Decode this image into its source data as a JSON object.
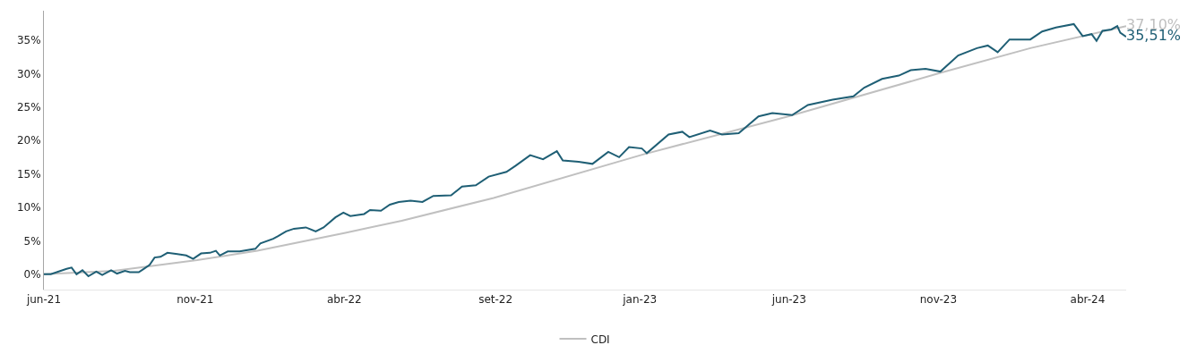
{
  "chart_data": {
    "type": "line",
    "xticks": [
      {
        "value": "2021-06-01",
        "label": "jun-21"
      },
      {
        "value": "2021-11-01",
        "label": "nov-21"
      },
      {
        "value": "2022-04-01",
        "label": "abr-22"
      },
      {
        "value": "2022-09-01",
        "label": "set-22"
      },
      {
        "value": "2023-01-25",
        "label": "jan-23"
      },
      {
        "value": "2023-06-25",
        "label": "jun-23"
      },
      {
        "value": "2023-11-23",
        "label": "nov-23"
      },
      {
        "value": "2024-04-22",
        "label": "abr-24"
      }
    ],
    "ylim": [
      -2.3,
      39.4
    ],
    "yticks": [
      {
        "value": 0,
        "label": "0%"
      },
      {
        "value": 5,
        "label": "5%"
      },
      {
        "value": 10,
        "label": "10%"
      },
      {
        "value": 15,
        "label": "15%"
      },
      {
        "value": 20,
        "label": "20%"
      },
      {
        "value": 25,
        "label": "25%"
      },
      {
        "value": 30,
        "label": "30%"
      },
      {
        "value": 35,
        "label": "35%"
      }
    ],
    "xlim": [
      "2021-06-01",
      "2024-05-31"
    ],
    "legend": "bottom",
    "marker": "none",
    "line_style": "solid",
    "series": [
      {
        "name": "CDI",
        "color": "#c0c0c0",
        "x": [
          "2021-06-01",
          "2021-08-11",
          "2021-11-03",
          "2022-01-03",
          "2022-04-02",
          "2022-05-29",
          "2022-08-30",
          "2023-01-28",
          "2023-06-24",
          "2023-11-25",
          "2024-02-24",
          "2024-05-31"
        ],
        "values": [
          0,
          0.5,
          2.1,
          3.5,
          6.2,
          8.0,
          11.4,
          17.9,
          23.6,
          30.1,
          33.8,
          37.1
        ],
        "value_labels": [
          null,
          null,
          null,
          null,
          null,
          null,
          null,
          null,
          null,
          null,
          null,
          "37,10%"
        ]
      },
      {
        "color": "#1f5f75",
        "x": [
          "2021-06-01",
          "2021-06-08",
          "2021-06-24",
          "2021-06-29",
          "2021-07-04",
          "2021-07-10",
          "2021-07-16",
          "2021-07-24",
          "2021-07-30",
          "2021-08-08",
          "2021-08-14",
          "2021-08-22",
          "2021-08-27",
          "2021-09-05",
          "2021-09-10",
          "2021-09-16",
          "2021-09-21",
          "2021-09-27",
          "2021-10-04",
          "2021-10-14",
          "2021-10-23",
          "2021-10-30",
          "2021-11-07",
          "2021-11-16",
          "2021-11-22",
          "2021-11-26",
          "2021-12-04",
          "2021-12-16",
          "2022-01-01",
          "2022-01-06",
          "2022-01-19",
          "2022-01-24",
          "2022-02-01",
          "2022-02-09",
          "2022-02-21",
          "2022-03-03",
          "2022-03-11",
          "2022-03-23",
          "2022-03-31",
          "2022-04-07",
          "2022-04-21",
          "2022-04-27",
          "2022-05-08",
          "2022-05-17",
          "2022-05-26",
          "2022-06-07",
          "2022-06-19",
          "2022-06-30",
          "2022-07-18",
          "2022-07-29",
          "2022-08-12",
          "2022-08-25",
          "2022-09-12",
          "2022-09-21",
          "2022-10-06",
          "2022-10-19",
          "2022-11-02",
          "2022-11-08",
          "2022-11-24",
          "2022-12-08",
          "2022-12-24",
          "2023-01-04",
          "2023-01-14",
          "2023-01-27",
          "2023-02-01",
          "2023-02-23",
          "2023-03-09",
          "2023-03-16",
          "2023-04-06",
          "2023-04-18",
          "2023-05-05",
          "2023-05-25",
          "2023-06-08",
          "2023-06-28",
          "2023-07-14",
          "2023-08-08",
          "2023-08-29",
          "2023-09-09",
          "2023-09-27",
          "2023-10-14",
          "2023-10-26",
          "2023-11-10",
          "2023-11-25",
          "2023-12-13",
          "2024-01-01",
          "2024-01-12",
          "2024-01-22",
          "2024-02-03",
          "2024-02-24",
          "2024-03-07",
          "2024-03-21",
          "2024-04-08",
          "2024-04-17",
          "2024-04-26",
          "2024-05-01",
          "2024-05-07",
          "2024-05-16",
          "2024-05-22",
          "2024-05-25",
          "2024-05-31"
        ],
        "values": [
          0,
          0,
          0.8,
          1.0,
          0.0,
          0.6,
          -0.3,
          0.4,
          -0.1,
          0.6,
          0.1,
          0.5,
          0.3,
          0.3,
          0.8,
          1.4,
          2.5,
          2.6,
          3.2,
          3.0,
          2.8,
          2.3,
          3.1,
          3.2,
          3.5,
          2.8,
          3.4,
          3.4,
          3.8,
          4.6,
          5.3,
          5.7,
          6.4,
          6.8,
          7.0,
          6.4,
          7.0,
          8.5,
          9.2,
          8.7,
          9.0,
          9.6,
          9.5,
          10.4,
          10.8,
          11.0,
          10.8,
          11.7,
          11.8,
          13.1,
          13.3,
          14.6,
          15.3,
          16.2,
          17.8,
          17.2,
          18.4,
          17.0,
          16.8,
          16.5,
          18.3,
          17.5,
          19.0,
          18.8,
          18.1,
          20.9,
          21.3,
          20.5,
          21.5,
          20.9,
          21.1,
          23.6,
          24.1,
          23.8,
          25.3,
          26.1,
          26.6,
          27.9,
          29.2,
          29.7,
          30.5,
          30.7,
          30.3,
          32.7,
          33.8,
          34.2,
          33.2,
          35.1,
          35.1,
          36.3,
          36.9,
          37.4,
          35.6,
          35.9,
          34.9,
          36.4,
          36.6,
          37.1,
          36.1,
          35.51
        ],
        "value_labels": [
          null,
          null,
          null,
          null,
          null,
          null,
          null,
          null,
          null,
          null,
          null,
          null,
          null,
          null,
          null,
          null,
          null,
          null,
          null,
          null,
          null,
          null,
          null,
          null,
          null,
          null,
          null,
          null,
          null,
          null,
          null,
          null,
          null,
          null,
          null,
          null,
          null,
          null,
          null,
          null,
          null,
          null,
          null,
          null,
          null,
          null,
          null,
          null,
          null,
          null,
          null,
          null,
          null,
          null,
          null,
          null,
          null,
          null,
          null,
          null,
          null,
          null,
          null,
          null,
          null,
          null,
          null,
          null,
          null,
          null,
          null,
          null,
          null,
          null,
          null,
          null,
          null,
          null,
          null,
          null,
          null,
          null,
          null,
          null,
          null,
          null,
          null,
          null,
          null,
          null,
          null,
          null,
          null,
          null,
          null,
          null,
          null,
          null,
          null,
          "35,51%"
        ]
      }
    ]
  }
}
